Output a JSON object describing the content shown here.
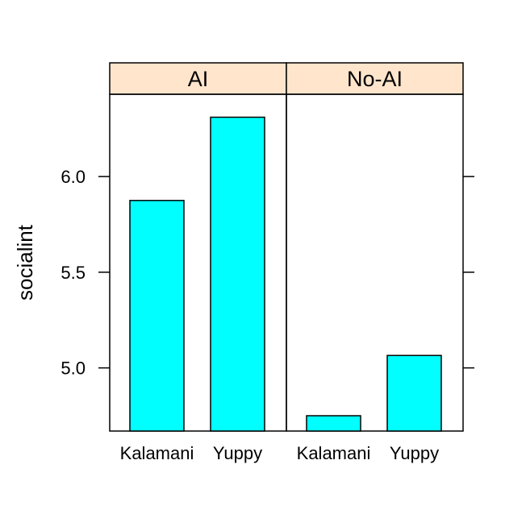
{
  "chart_data": {
    "type": "bar",
    "layout": "lattice-panels",
    "ylabel": "socialint",
    "ylim": [
      4.67,
      6.43
    ],
    "yticks": [
      5.0,
      5.5,
      6.0
    ],
    "ytick_labels": [
      "5.0",
      "5.5",
      "6.0"
    ],
    "categories": [
      "Kalamani",
      "Yuppy"
    ],
    "panels": [
      {
        "name": "AI",
        "values": [
          5.875,
          6.31
        ]
      },
      {
        "name": "No-AI",
        "values": [
          4.75,
          5.065
        ]
      }
    ],
    "colors": {
      "bar_fill": "#00ffff",
      "strip_fill": "#ffe5cc",
      "outline": "#000000"
    },
    "grid": false,
    "legend": "none"
  }
}
